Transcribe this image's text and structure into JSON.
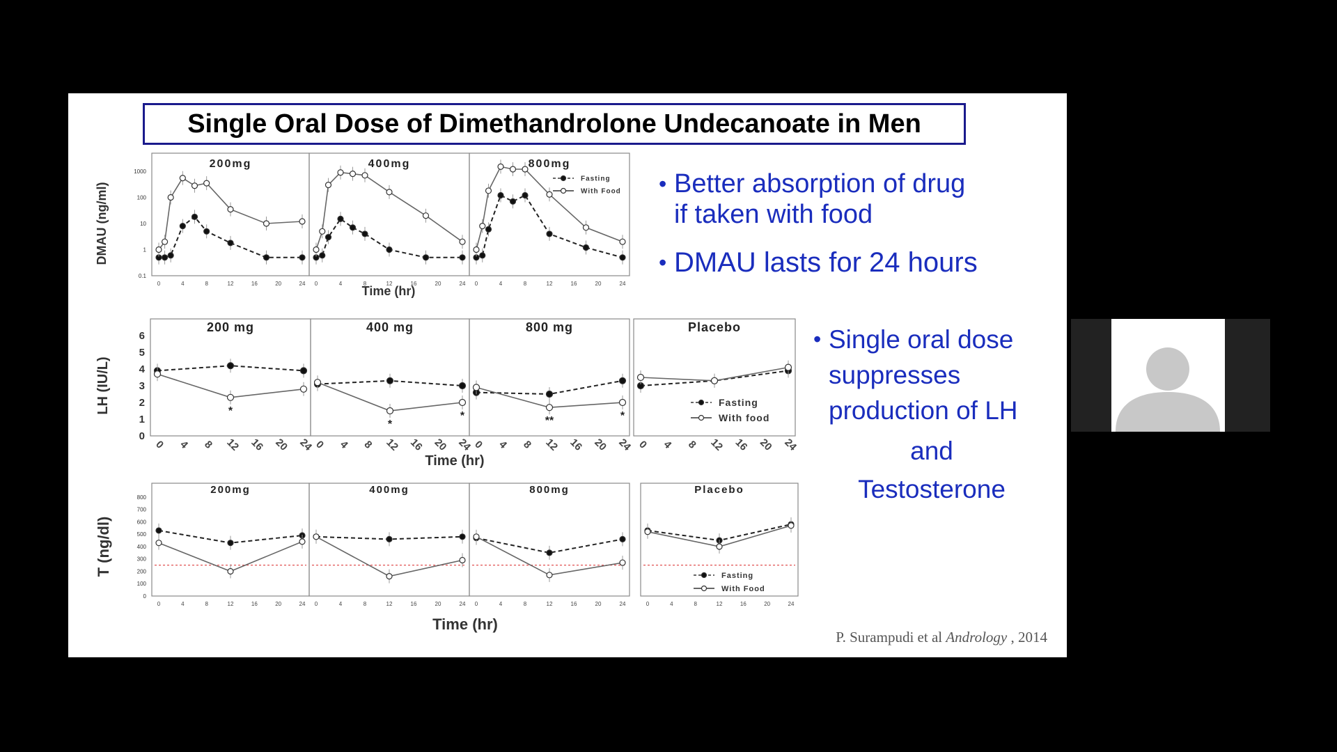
{
  "slide": {
    "title": "Single Oral Dose of Dimethandrolone Undecanoate in Men",
    "bullets_top": [
      {
        "line1": "Better absorption of drug",
        "line2": "if taken with food"
      },
      {
        "line1": "DMAU lasts for 24 hours"
      }
    ],
    "bullets_mid": {
      "lines": [
        "Single oral dose",
        "suppresses",
        "production of LH"
      ],
      "and": "and",
      "last": "Testosterone"
    },
    "citation": {
      "authors": "P. Surampudi et al",
      "journal": "Andrology",
      "year": ", 2014"
    }
  },
  "participant": {
    "icon": "person-avatar-icon"
  },
  "chart_data": [
    {
      "type": "line",
      "ylabel": "DMAU (ng/ml)",
      "xlabel": "Time (hr)",
      "yscale": "log",
      "ylim": [
        0.1,
        1000
      ],
      "yticks": [
        "0.1",
        "1",
        "10",
        "100",
        "1000"
      ],
      "xticks": [
        "0",
        "4",
        "8",
        "12",
        "16",
        "20",
        "24"
      ],
      "legend": {
        "placement": "top-right",
        "panel": 2,
        "entries": [
          "Fasting",
          "With Food"
        ]
      },
      "panels": [
        {
          "title": "200mg",
          "series": [
            {
              "name": "Fasting",
              "x": [
                0,
                1,
                2,
                4,
                6,
                8,
                12,
                18,
                24
              ],
              "y": [
                0.5,
                0.5,
                0.6,
                8,
                18,
                5,
                1.8,
                0.5,
                0.5
              ]
            },
            {
              "name": "With Food",
              "x": [
                0,
                1,
                2,
                4,
                6,
                8,
                12,
                18,
                24
              ],
              "y": [
                1,
                2,
                100,
                550,
                280,
                350,
                35,
                10,
                12
              ]
            }
          ]
        },
        {
          "title": "400mg",
          "series": [
            {
              "name": "Fasting",
              "x": [
                0,
                1,
                2,
                4,
                6,
                8,
                12,
                18,
                24
              ],
              "y": [
                0.5,
                0.6,
                3,
                15,
                7,
                4,
                1,
                0.5,
                0.5
              ]
            },
            {
              "name": "With Food",
              "x": [
                0,
                1,
                2,
                4,
                6,
                8,
                12,
                18,
                24
              ],
              "y": [
                1,
                5,
                300,
                900,
                800,
                700,
                160,
                20,
                2
              ]
            }
          ]
        },
        {
          "title": "800mg",
          "series": [
            {
              "name": "Fasting",
              "x": [
                0,
                1,
                2,
                4,
                6,
                8,
                12,
                18,
                24
              ],
              "y": [
                0.5,
                0.6,
                6,
                120,
                70,
                120,
                4,
                1.2,
                0.5
              ]
            },
            {
              "name": "With Food",
              "x": [
                0,
                1,
                2,
                4,
                6,
                8,
                12,
                18,
                24
              ],
              "y": [
                1,
                8,
                180,
                1500,
                1200,
                1200,
                130,
                7,
                2
              ]
            }
          ]
        }
      ]
    },
    {
      "type": "line",
      "ylabel": "LH (IU/L)",
      "xlabel": "Time (hr)",
      "ylim": [
        0,
        6
      ],
      "yticks": [
        "0",
        "1",
        "2",
        "3",
        "4",
        "5",
        "6"
      ],
      "xticks": [
        "0",
        "4",
        "8",
        "12",
        "16",
        "20",
        "24"
      ],
      "legend": {
        "placement": "bottom-right",
        "panel": 3,
        "entries": [
          "Fasting",
          "With food"
        ]
      },
      "panels": [
        {
          "title": "200 mg",
          "series": [
            {
              "name": "Fasting",
              "x": [
                0,
                12,
                24
              ],
              "y": [
                3.9,
                4.2,
                3.9
              ]
            },
            {
              "name": "With food",
              "x": [
                0,
                12,
                24
              ],
              "y": [
                3.7,
                2.3,
                2.8
              ]
            }
          ],
          "annotations": [
            {
              "x": 12,
              "text": "*"
            }
          ]
        },
        {
          "title": "400 mg",
          "series": [
            {
              "name": "Fasting",
              "x": [
                0,
                12,
                24
              ],
              "y": [
                3.1,
                3.3,
                3.0
              ]
            },
            {
              "name": "With food",
              "x": [
                0,
                12,
                24
              ],
              "y": [
                3.2,
                1.5,
                2.0
              ]
            }
          ],
          "annotations": [
            {
              "x": 12,
              "text": "*"
            },
            {
              "x": 24,
              "text": "*"
            }
          ]
        },
        {
          "title": "800 mg",
          "series": [
            {
              "name": "Fasting",
              "x": [
                0,
                12,
                24
              ],
              "y": [
                2.6,
                2.5,
                3.3
              ]
            },
            {
              "name": "With food",
              "x": [
                0,
                12,
                24
              ],
              "y": [
                2.9,
                1.7,
                2.0
              ]
            }
          ],
          "annotations": [
            {
              "x": 12,
              "text": "**"
            },
            {
              "x": 24,
              "text": "*"
            }
          ]
        },
        {
          "title": "Placebo",
          "series": [
            {
              "name": "Fasting",
              "x": [
                0,
                12,
                24
              ],
              "y": [
                3.0,
                3.3,
                3.9
              ]
            },
            {
              "name": "With food",
              "x": [
                0,
                12,
                24
              ],
              "y": [
                3.5,
                3.3,
                4.1
              ]
            }
          ]
        }
      ]
    },
    {
      "type": "line",
      "ylabel": "T (ng/dl)",
      "xlabel": "Time (hr)",
      "ylim": [
        0,
        800
      ],
      "yticks": [
        "0",
        "100",
        "200",
        "300",
        "400",
        "500",
        "600",
        "700",
        "800"
      ],
      "xticks": [
        "0",
        "4",
        "8",
        "12",
        "16",
        "20",
        "24"
      ],
      "reference_line": 250,
      "legend": {
        "placement": "bottom-right",
        "panel": 3,
        "entries": [
          "Fasting",
          "With Food"
        ]
      },
      "panels": [
        {
          "title": "200mg",
          "series": [
            {
              "name": "Fasting",
              "x": [
                0,
                12,
                24
              ],
              "y": [
                530,
                430,
                490
              ]
            },
            {
              "name": "With Food",
              "x": [
                0,
                12,
                24
              ],
              "y": [
                430,
                200,
                440
              ]
            }
          ]
        },
        {
          "title": "400mg",
          "series": [
            {
              "name": "Fasting",
              "x": [
                0,
                12,
                24
              ],
              "y": [
                480,
                460,
                480
              ]
            },
            {
              "name": "With Food",
              "x": [
                0,
                12,
                24
              ],
              "y": [
                480,
                160,
                290
              ]
            }
          ]
        },
        {
          "title": "800mg",
          "series": [
            {
              "name": "Fasting",
              "x": [
                0,
                12,
                24
              ],
              "y": [
                470,
                350,
                460
              ]
            },
            {
              "name": "With Food",
              "x": [
                0,
                12,
                24
              ],
              "y": [
                480,
                170,
                270
              ]
            }
          ]
        },
        {
          "title": "Placebo",
          "series": [
            {
              "name": "Fasting",
              "x": [
                0,
                12,
                24
              ],
              "y": [
                530,
                450,
                580
              ]
            },
            {
              "name": "With Food",
              "x": [
                0,
                12,
                24
              ],
              "y": [
                520,
                400,
                570
              ]
            }
          ]
        }
      ]
    }
  ]
}
